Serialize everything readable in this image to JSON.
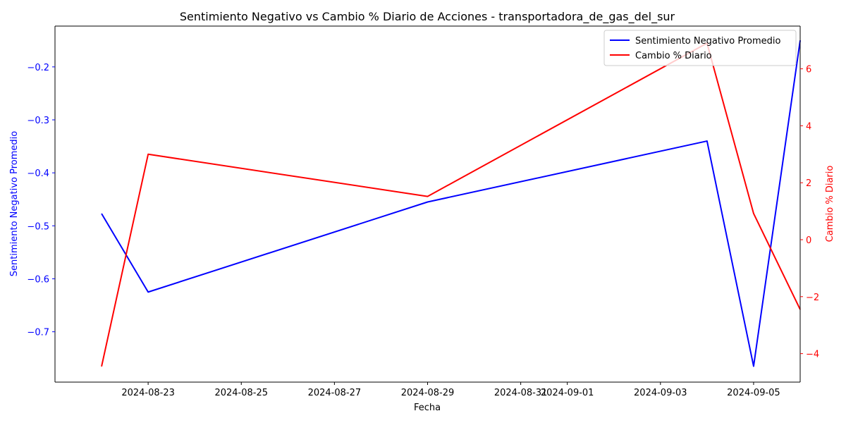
{
  "chart_data": {
    "type": "line",
    "title": "Sentimiento Negativo vs Cambio % Diario de Acciones - transportadora_de_gas_del_sur",
    "xlabel": "Fecha",
    "ylabel_left": "Sentimiento Negativo Promedio",
    "ylabel_right": "Cambio % Diario",
    "x": [
      "2024-08-22",
      "2024-08-23",
      "2024-08-29",
      "2024-09-04",
      "2024-09-05",
      "2024-09-06"
    ],
    "x_ticks": [
      "2024-08-23",
      "2024-08-25",
      "2024-08-27",
      "2024-08-29",
      "2024-08-31",
      "2024-09-01",
      "2024-09-03",
      "2024-09-05"
    ],
    "x_range": [
      "2024-08-21",
      "2024-09-06"
    ],
    "y_left_ticks": [
      -0.7,
      -0.6,
      -0.5,
      -0.4,
      -0.3,
      -0.2
    ],
    "y_left_tick_labels": [
      "−0.7",
      "−0.6",
      "−0.5",
      "−0.4",
      "−0.3",
      "−0.2"
    ],
    "ylim_left": [
      -0.795,
      -0.123
    ],
    "y_right_ticks": [
      -4,
      -2,
      0,
      2,
      4,
      6
    ],
    "y_right_tick_labels": [
      "−4",
      "−2",
      "0",
      "2",
      "4",
      "6"
    ],
    "ylim_right": [
      -5.0,
      7.5
    ],
    "series": [
      {
        "name": "Sentimiento Negativo Promedio",
        "axis": "left",
        "color": "#0000ff",
        "values": [
          -0.477,
          -0.625,
          -0.455,
          -0.34,
          -0.765,
          -0.15
        ]
      },
      {
        "name": "Cambio % Diario",
        "axis": "right",
        "color": "#ff0000",
        "values": [
          -4.45,
          3.0,
          1.52,
          6.9,
          0.92,
          -2.45
        ]
      }
    ],
    "legend_position": "upper right",
    "grid": false
  }
}
